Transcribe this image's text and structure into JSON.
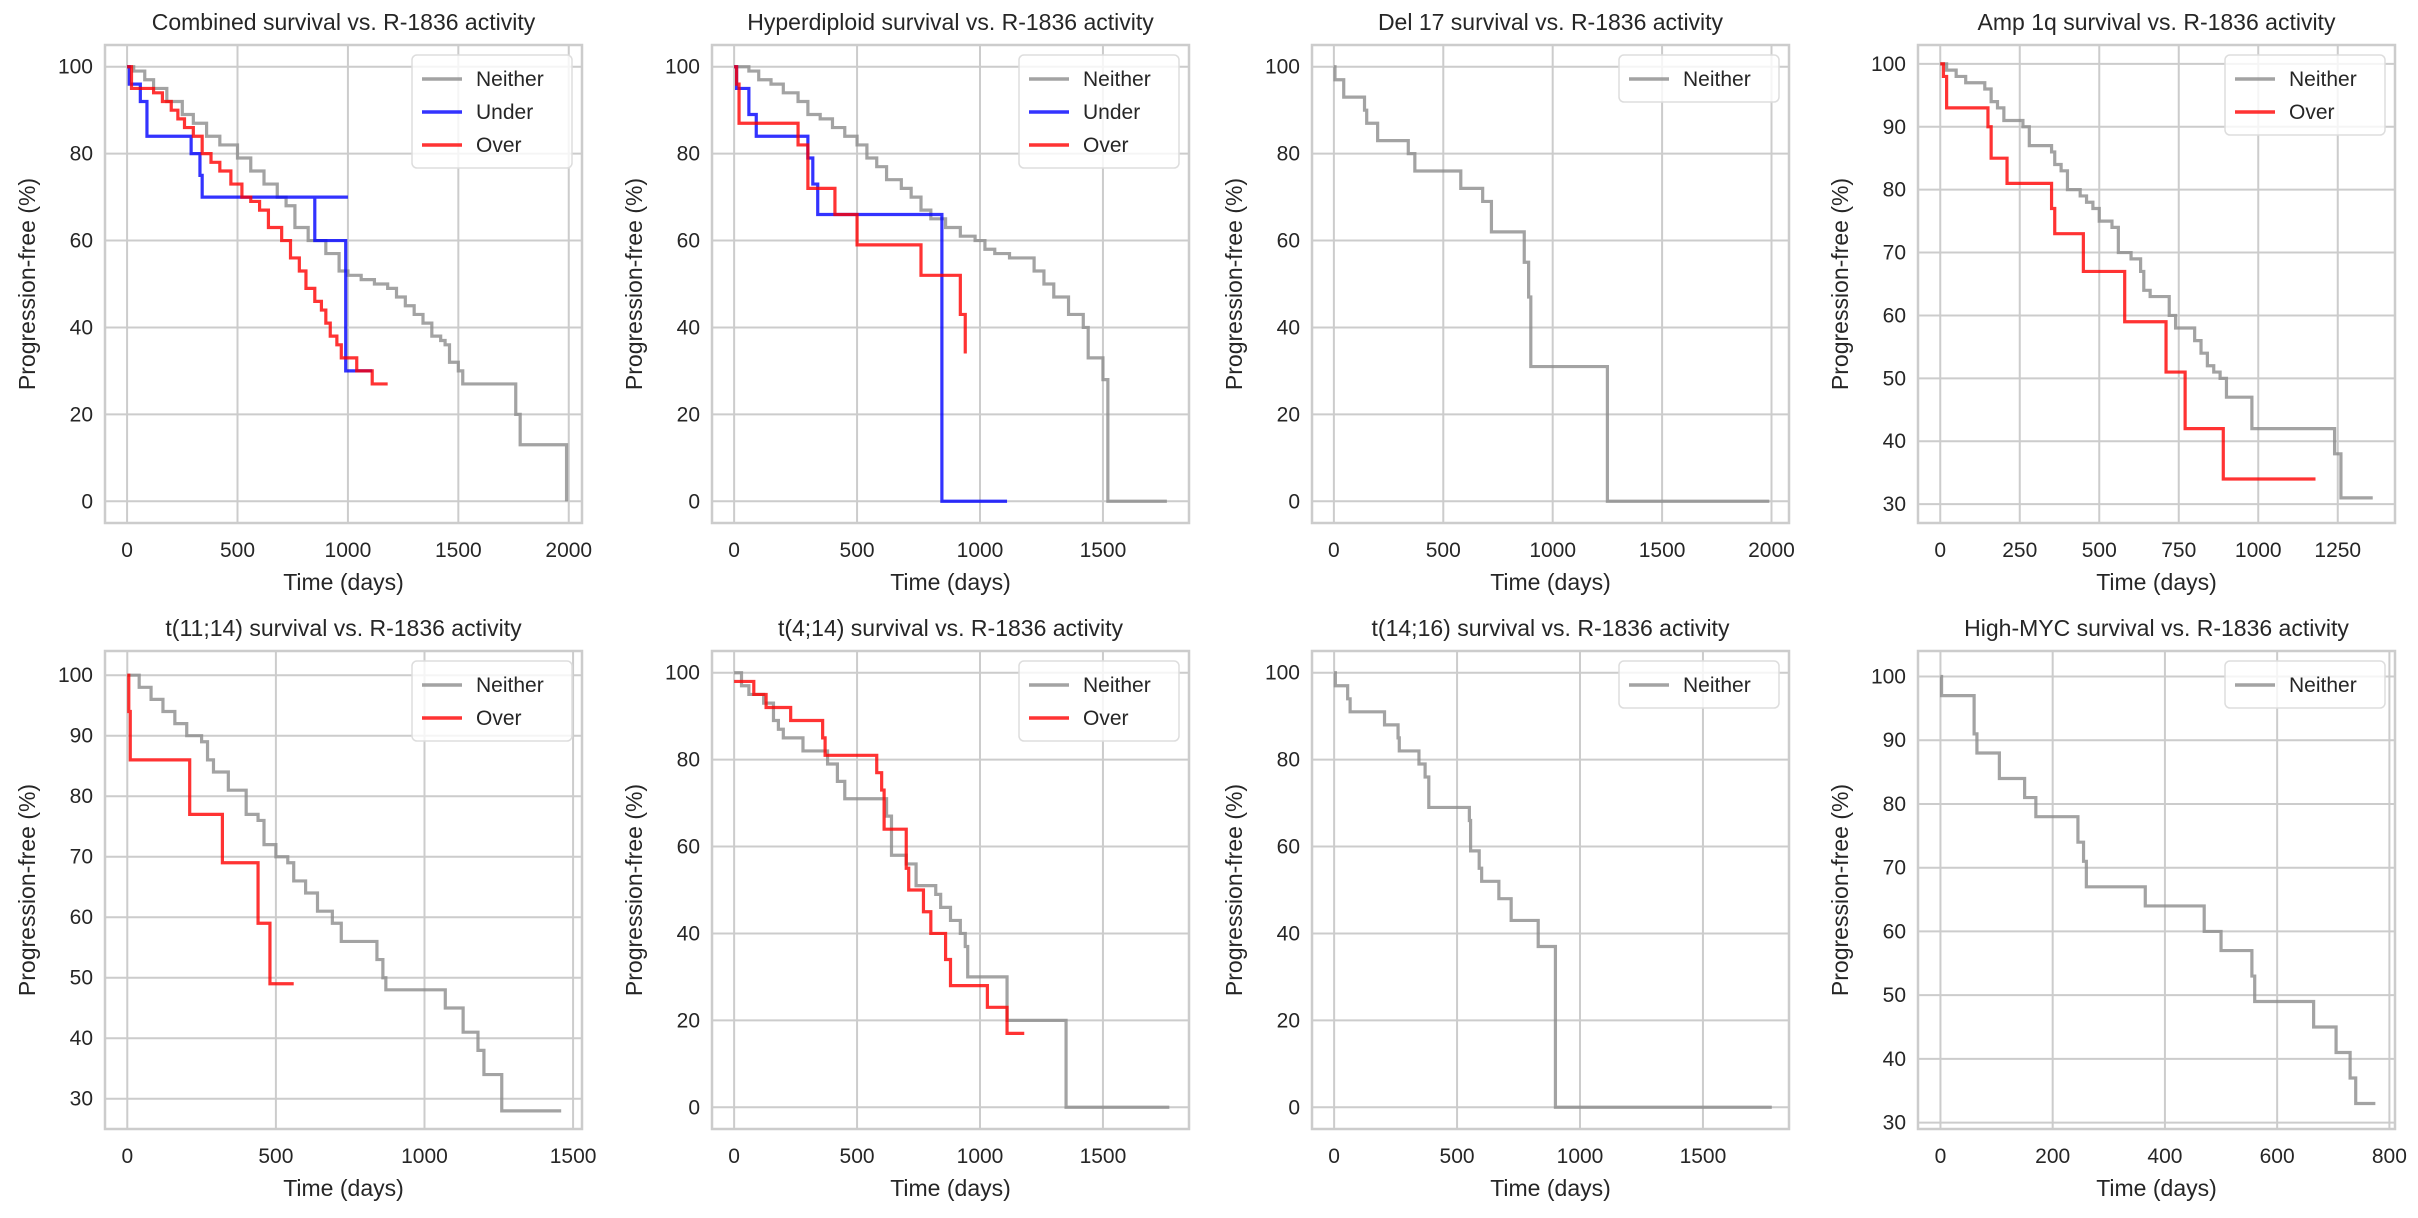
{
  "colors": {
    "Neither": "#8c8c8c",
    "Under": "#0000ff",
    "Over": "#ff0000",
    "grid": "#cccccc",
    "text": "#262626"
  },
  "chart_data": [
    {
      "type": "line",
      "subtype": "kaplan-meier step",
      "title": "Combined survival vs. R-1836 activity",
      "xlabel": "Time (days)",
      "ylabel": "Progression-free (%)",
      "xlim": [
        -100,
        2060
      ],
      "ylim": [
        -5,
        105
      ],
      "xticks": [
        0,
        500,
        1000,
        1500,
        2000
      ],
      "yticks": [
        0,
        20,
        40,
        60,
        80,
        100
      ],
      "grid": true,
      "legend": "top-right",
      "series": [
        {
          "name": "Neither",
          "x": [
            0,
            30,
            80,
            120,
            180,
            250,
            300,
            360,
            420,
            500,
            560,
            620,
            680,
            720,
            760,
            820,
            900,
            960,
            1000,
            1060,
            1120,
            1180,
            1220,
            1260,
            1300,
            1340,
            1380,
            1420,
            1440,
            1460,
            1500,
            1520,
            1760,
            1780,
            1990
          ],
          "y": [
            100,
            99,
            97,
            95,
            92,
            89,
            87,
            84,
            82,
            79,
            76,
            73,
            70,
            68,
            63,
            60,
            57,
            53,
            52,
            51,
            50,
            49,
            47,
            45,
            43,
            41,
            38,
            37,
            36,
            32,
            30,
            27,
            20,
            13,
            0
          ]
        },
        {
          "name": "Under",
          "x": [
            0,
            10,
            60,
            90,
            290,
            330,
            340,
            1000,
            850,
            960,
            990,
            1110
          ],
          "y": [
            100,
            96,
            92,
            84,
            80,
            75,
            70,
            70,
            60,
            60,
            30,
            30
          ]
        },
        {
          "name": "Over",
          "x": [
            0,
            20,
            120,
            160,
            200,
            230,
            260,
            300,
            340,
            380,
            420,
            470,
            520,
            560,
            600,
            640,
            700,
            740,
            780,
            810,
            850,
            880,
            900,
            920,
            950,
            970,
            1040,
            1110,
            1180
          ],
          "y": [
            100,
            95,
            94,
            92,
            90,
            88,
            86,
            84,
            80,
            78,
            76,
            73,
            70,
            69,
            67,
            63,
            60,
            56,
            53,
            49,
            46,
            44,
            41,
            38,
            36,
            33,
            30,
            27,
            27
          ]
        }
      ]
    },
    {
      "type": "line",
      "subtype": "kaplan-meier step",
      "title": "Hyperdiploid survival vs. R-1836 activity",
      "xlabel": "Time (days)",
      "ylabel": "Progression-free (%)",
      "xlim": [
        -90,
        1850
      ],
      "ylim": [
        -5,
        105
      ],
      "xticks": [
        0,
        500,
        1000,
        1500
      ],
      "yticks": [
        0,
        20,
        40,
        60,
        80,
        100
      ],
      "grid": true,
      "legend": "top-right",
      "series": [
        {
          "name": "Neither",
          "x": [
            0,
            60,
            100,
            150,
            200,
            260,
            300,
            350,
            400,
            450,
            500,
            540,
            580,
            620,
            680,
            720,
            760,
            800,
            860,
            920,
            980,
            1020,
            1060,
            1120,
            1180,
            1220,
            1260,
            1300,
            1360,
            1420,
            1440,
            1500,
            1520,
            1760
          ],
          "y": [
            100,
            99,
            97,
            96,
            94,
            92,
            89,
            88,
            86,
            84,
            82,
            79,
            77,
            74,
            72,
            70,
            67,
            65,
            63,
            61,
            60,
            58,
            57,
            56,
            56,
            53,
            50,
            47,
            43,
            40,
            33,
            28,
            0,
            0
          ]
        },
        {
          "name": "Under",
          "x": [
            0,
            10,
            60,
            90,
            280,
            300,
            320,
            340,
            840,
            845,
            1110
          ],
          "y": [
            100,
            95,
            89,
            84,
            84,
            79,
            73,
            66,
            66,
            0,
            0
          ]
        },
        {
          "name": "Over",
          "x": [
            0,
            10,
            20,
            200,
            260,
            300,
            410,
            500,
            760,
            920,
            940
          ],
          "y": [
            100,
            96,
            87,
            87,
            82,
            72,
            66,
            59,
            52,
            43,
            34
          ]
        }
      ]
    },
    {
      "type": "line",
      "subtype": "kaplan-meier step",
      "title": "Del 17 survival vs. R-1836 activity",
      "xlabel": "Time (days)",
      "ylabel": "Progression-free (%)",
      "xlim": [
        -100,
        2080
      ],
      "ylim": [
        -5,
        105
      ],
      "xticks": [
        0,
        500,
        1000,
        1500,
        2000
      ],
      "yticks": [
        0,
        20,
        40,
        60,
        80,
        100
      ],
      "grid": true,
      "legend": "top-right",
      "series": [
        {
          "name": "Neither",
          "x": [
            0,
            5,
            45,
            140,
            150,
            200,
            340,
            370,
            580,
            680,
            720,
            870,
            890,
            900,
            910,
            1250,
            1990
          ],
          "y": [
            100,
            97,
            93,
            90,
            87,
            83,
            80,
            76,
            72,
            69,
            62,
            55,
            47,
            31,
            31,
            0,
            0
          ]
        }
      ]
    },
    {
      "type": "line",
      "subtype": "kaplan-meier step",
      "title": "Amp 1q survival vs. R-1836 activity",
      "xlabel": "Time (days)",
      "ylabel": "Progression-free (%)",
      "xlim": [
        -70,
        1430
      ],
      "ylim": [
        27,
        103
      ],
      "xticks": [
        0,
        250,
        500,
        750,
        1000,
        1250
      ],
      "yticks": [
        30,
        40,
        50,
        60,
        70,
        80,
        90,
        100
      ],
      "grid": true,
      "legend": "top-right",
      "series": [
        {
          "name": "Neither",
          "x": [
            0,
            20,
            50,
            80,
            140,
            160,
            180,
            200,
            260,
            280,
            320,
            350,
            360,
            380,
            400,
            440,
            460,
            480,
            500,
            540,
            560,
            600,
            630,
            640,
            660,
            720,
            740,
            800,
            820,
            840,
            860,
            880,
            900,
            980,
            1240,
            1260,
            1360
          ],
          "y": [
            100,
            99,
            98,
            97,
            96,
            94,
            93,
            91,
            90,
            87,
            87,
            86,
            84,
            83,
            80,
            79,
            78,
            77,
            75,
            74,
            70,
            69,
            67,
            64,
            63,
            60,
            58,
            56,
            54,
            52,
            51,
            50,
            47,
            42,
            38,
            31,
            31
          ]
        },
        {
          "name": "Over",
          "x": [
            0,
            10,
            20,
            150,
            160,
            210,
            350,
            360,
            450,
            580,
            710,
            770,
            890,
            1180
          ],
          "y": [
            100,
            98,
            93,
            90,
            85,
            81,
            77,
            73,
            67,
            59,
            51,
            42,
            34,
            34
          ]
        }
      ]
    },
    {
      "type": "line",
      "subtype": "kaplan-meier step",
      "title": "t(11;14) survival vs. R-1836 activity",
      "xlabel": "Time (days)",
      "ylabel": "Progression-free (%)",
      "xlim": [
        -75,
        1530
      ],
      "ylim": [
        25,
        104
      ],
      "xticks": [
        0,
        500,
        1000,
        1500
      ],
      "yticks": [
        30,
        40,
        50,
        60,
        70,
        80,
        90,
        100
      ],
      "grid": true,
      "legend": "top-right",
      "series": [
        {
          "name": "Neither",
          "x": [
            0,
            40,
            80,
            120,
            160,
            200,
            250,
            270,
            290,
            340,
            400,
            440,
            460,
            500,
            540,
            560,
            600,
            640,
            690,
            720,
            840,
            860,
            870,
            1070,
            1130,
            1180,
            1200,
            1260,
            1460
          ],
          "y": [
            100,
            98,
            96,
            94,
            92,
            90,
            89,
            86,
            84,
            81,
            77,
            76,
            72,
            70,
            69,
            66,
            64,
            61,
            59,
            56,
            53,
            50,
            48,
            45,
            41,
            38,
            34,
            28,
            28
          ]
        },
        {
          "name": "Over",
          "x": [
            0,
            5,
            10,
            210,
            320,
            440,
            480,
            560
          ],
          "y": [
            100,
            94,
            86,
            77,
            69,
            59,
            49,
            49
          ]
        }
      ]
    },
    {
      "type": "line",
      "subtype": "kaplan-meier step",
      "title": "t(4;14) survival vs. R-1836 activity",
      "xlabel": "Time (days)",
      "ylabel": "Progression-free (%)",
      "xlim": [
        -90,
        1850
      ],
      "ylim": [
        -5,
        105
      ],
      "xticks": [
        0,
        500,
        1000,
        1500
      ],
      "yticks": [
        0,
        20,
        40,
        60,
        80,
        100
      ],
      "grid": true,
      "legend": "top-right",
      "series": [
        {
          "name": "Neither",
          "x": [
            0,
            30,
            60,
            120,
            160,
            180,
            200,
            280,
            380,
            420,
            450,
            600,
            620,
            640,
            700,
            740,
            820,
            840,
            880,
            920,
            940,
            950,
            1100,
            1110,
            1350,
            1770
          ],
          "y": [
            100,
            97,
            95,
            93,
            89,
            87,
            85,
            82,
            79,
            75,
            71,
            71,
            67,
            58,
            56,
            51,
            49,
            46,
            43,
            40,
            37,
            30,
            30,
            20,
            0,
            0
          ]
        },
        {
          "name": "Over",
          "x": [
            0,
            80,
            130,
            230,
            360,
            370,
            580,
            600,
            610,
            700,
            710,
            770,
            800,
            860,
            880,
            1030,
            1110,
            1180
          ],
          "y": [
            98,
            95,
            92,
            89,
            85,
            81,
            77,
            73,
            64,
            55,
            50,
            45,
            40,
            34,
            28,
            23,
            17,
            17
          ]
        }
      ]
    },
    {
      "type": "line",
      "subtype": "kaplan-meier step",
      "title": "t(14;16) survival vs. R-1836 activity",
      "xlabel": "Time (days)",
      "ylabel": "Progression-free (%)",
      "xlim": [
        -90,
        1850
      ],
      "ylim": [
        -5,
        105
      ],
      "xticks": [
        0,
        500,
        1000,
        1500
      ],
      "yticks": [
        0,
        20,
        40,
        60,
        80,
        100
      ],
      "grid": true,
      "legend": "top-right",
      "series": [
        {
          "name": "Neither",
          "x": [
            0,
            5,
            55,
            65,
            205,
            260,
            265,
            345,
            370,
            385,
            550,
            555,
            590,
            600,
            670,
            720,
            830,
            900,
            1780
          ],
          "y": [
            100,
            97,
            94,
            91,
            88,
            85,
            82,
            79,
            76,
            69,
            66,
            59,
            55,
            52,
            48,
            43,
            37,
            0,
            0
          ]
        }
      ]
    },
    {
      "type": "line",
      "subtype": "kaplan-meier step",
      "title": "High-MYC survival vs. R-1836 activity",
      "xlabel": "Time (days)",
      "ylabel": "Progression-free (%)",
      "xlim": [
        -40,
        810
      ],
      "ylim": [
        29,
        104
      ],
      "xticks": [
        0,
        200,
        400,
        600,
        800
      ],
      "yticks": [
        30,
        40,
        50,
        60,
        70,
        80,
        90,
        100
      ],
      "grid": true,
      "legend": "top-right",
      "series": [
        {
          "name": "Neither",
          "x": [
            0,
            2,
            60,
            65,
            105,
            150,
            170,
            245,
            255,
            260,
            365,
            470,
            500,
            555,
            560,
            665,
            705,
            730,
            740,
            775
          ],
          "y": [
            100,
            97,
            91,
            88,
            84,
            81,
            78,
            74,
            71,
            67,
            64,
            60,
            57,
            53,
            49,
            45,
            41,
            37,
            33,
            33
          ]
        }
      ]
    }
  ]
}
